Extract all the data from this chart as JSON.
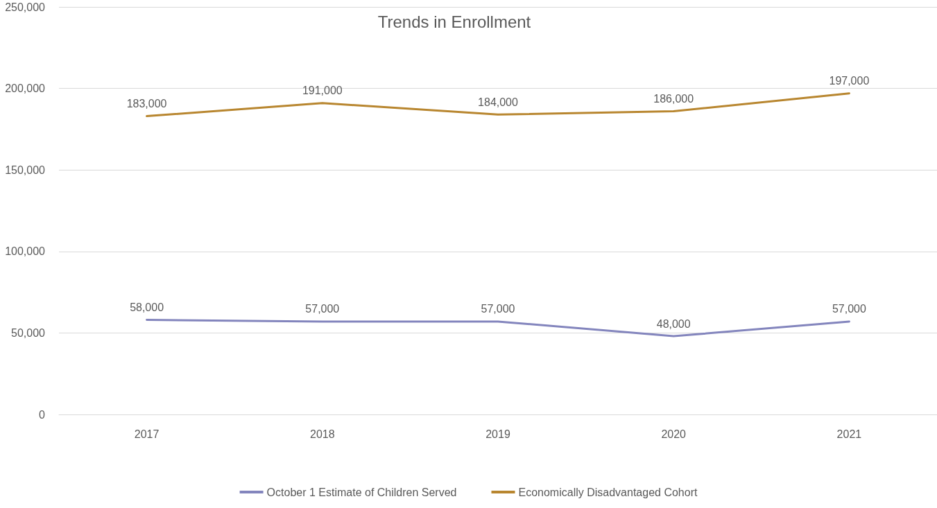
{
  "chart_data": {
    "type": "line",
    "title": "Trends in Enrollment",
    "categories": [
      "2017",
      "2018",
      "2019",
      "2020",
      "2021"
    ],
    "series": [
      {
        "name": "October 1 Estimate of Children Served",
        "color": "#8385bd",
        "values": [
          58000,
          57000,
          57000,
          48000,
          57000
        ],
        "value_labels": [
          "58,000",
          "57,000",
          "57,000",
          "48,000",
          "57,000"
        ]
      },
      {
        "name": "Economically Disadvantaged Cohort",
        "color": "#b8862f",
        "values": [
          183000,
          191000,
          184000,
          186000,
          197000
        ],
        "value_labels": [
          "183,000",
          "191,000",
          "184,000",
          "186,000",
          "197,000"
        ]
      }
    ],
    "ylim": [
      0,
      250000
    ],
    "yticks": [
      {
        "value": 0,
        "label": "0"
      },
      {
        "value": 50000,
        "label": "50,000"
      },
      {
        "value": 100000,
        "label": "100,000"
      },
      {
        "value": 150000,
        "label": "150,000"
      },
      {
        "value": 200000,
        "label": "200,000"
      },
      {
        "value": 250000,
        "label": "250,000"
      }
    ],
    "grid": "y",
    "legend": "bottom",
    "marker": "none",
    "line_style": "solid"
  }
}
